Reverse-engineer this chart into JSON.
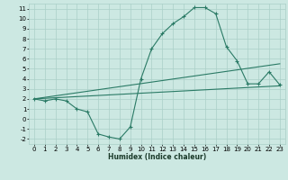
{
  "title": "",
  "xlabel": "Humidex (Indice chaleur)",
  "bg_color": "#cce8e2",
  "grid_color": "#aacfc8",
  "line_color": "#2a7a65",
  "xlim": [
    -0.5,
    23.5
  ],
  "ylim": [
    -2.5,
    11.5
  ],
  "xticks": [
    0,
    1,
    2,
    3,
    4,
    5,
    6,
    7,
    8,
    9,
    10,
    11,
    12,
    13,
    14,
    15,
    16,
    17,
    18,
    19,
    20,
    21,
    22,
    23
  ],
  "yticks": [
    -2,
    -1,
    0,
    1,
    2,
    3,
    4,
    5,
    6,
    7,
    8,
    9,
    10,
    11
  ],
  "line1_x": [
    0,
    1,
    2,
    3,
    4,
    5,
    6,
    7,
    8,
    9,
    10,
    11,
    12,
    13,
    14,
    15,
    16,
    17,
    18,
    19,
    20,
    21,
    22,
    23
  ],
  "line1_y": [
    2.0,
    1.8,
    2.0,
    1.8,
    1.0,
    0.7,
    -1.5,
    -1.8,
    -2.0,
    -0.8,
    4.0,
    7.0,
    8.5,
    9.5,
    10.2,
    11.1,
    11.1,
    10.5,
    7.2,
    5.8,
    3.5,
    3.5,
    4.7,
    3.4
  ],
  "line2_x": [
    0,
    23
  ],
  "line2_y": [
    2.0,
    3.3
  ],
  "line3_x": [
    0,
    23
  ],
  "line3_y": [
    2.0,
    5.5
  ],
  "xlabel_fontsize": 5.5,
  "xlabel_fontweight": "bold",
  "tick_fontsize": 5.0,
  "marker_size": 3.0,
  "linewidth": 0.8
}
